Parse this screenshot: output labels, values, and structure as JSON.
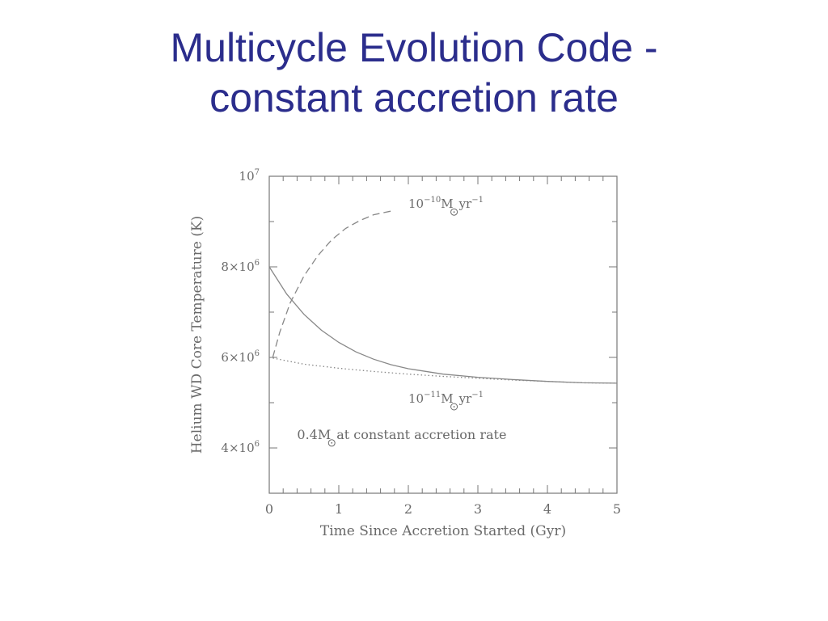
{
  "slide": {
    "title_line1": "Multicycle Evolution Code -",
    "title_line2": "constant accretion rate"
  },
  "chart_data": {
    "type": "line",
    "title": "",
    "xlabel": "Time Since Accretion Started (Gyr)",
    "ylabel": "Helium WD Core Temperature (K)",
    "xlim": [
      0,
      5
    ],
    "ylim": [
      3000000,
      10000000
    ],
    "x_ticks": [
      0,
      1,
      2,
      3,
      4,
      5
    ],
    "x_tick_labels": [
      "0",
      "1",
      "2",
      "3",
      "4",
      "5"
    ],
    "y_tick_values": [
      4000000,
      6000000,
      8000000,
      10000000
    ],
    "y_tick_labels": [
      {
        "mantissa": "4×10",
        "exp": "6"
      },
      {
        "mantissa": "6×10",
        "exp": "6"
      },
      {
        "mantissa": "8×10",
        "exp": "6"
      },
      {
        "mantissa": "10",
        "exp": "7"
      }
    ],
    "grid": false,
    "series": [
      {
        "style": "solid",
        "color": "#888888",
        "x": [
          0,
          0.25,
          0.5,
          0.75,
          1.0,
          1.25,
          1.5,
          1.75,
          2.0,
          2.5,
          3.0,
          3.5,
          4.0,
          4.5,
          5.0
        ],
        "y": [
          8000000,
          7400000,
          6950000,
          6600000,
          6330000,
          6120000,
          5960000,
          5840000,
          5750000,
          5630000,
          5560000,
          5510000,
          5470000,
          5440000,
          5430000
        ]
      },
      {
        "style": "dashed",
        "color": "#888888",
        "x": [
          0.05,
          0.15,
          0.3,
          0.5,
          0.7,
          0.9,
          1.1,
          1.3,
          1.5,
          1.75
        ],
        "y": [
          6000000,
          6550000,
          7200000,
          7800000,
          8250000,
          8600000,
          8850000,
          9020000,
          9150000,
          9230000
        ]
      },
      {
        "style": "dotted",
        "color": "#888888",
        "x": [
          0,
          0.5,
          1.0,
          1.5,
          2.0,
          2.5,
          3.0,
          3.5,
          4.0,
          4.5,
          5.0
        ],
        "y": [
          6000000,
          5850000,
          5760000,
          5690000,
          5630000,
          5580000,
          5540000,
          5500000,
          5470000,
          5440000,
          5430000
        ]
      }
    ],
    "annotations": [
      {
        "id": "upper",
        "base": "10",
        "exp": "−10",
        "unit": "M",
        "rest": "yr",
        "rest_exp": "−1",
        "x": 2.0,
        "y": 9300000
      },
      {
        "id": "lower",
        "base": "10",
        "exp": "−11",
        "unit": "M",
        "rest": "yr",
        "rest_exp": "−1",
        "x": 2.0,
        "y": 5000000
      },
      {
        "id": "note",
        "lead": "0.4M",
        "text": "at constant accretion rate",
        "x": 0.4,
        "y": 4200000
      }
    ]
  }
}
